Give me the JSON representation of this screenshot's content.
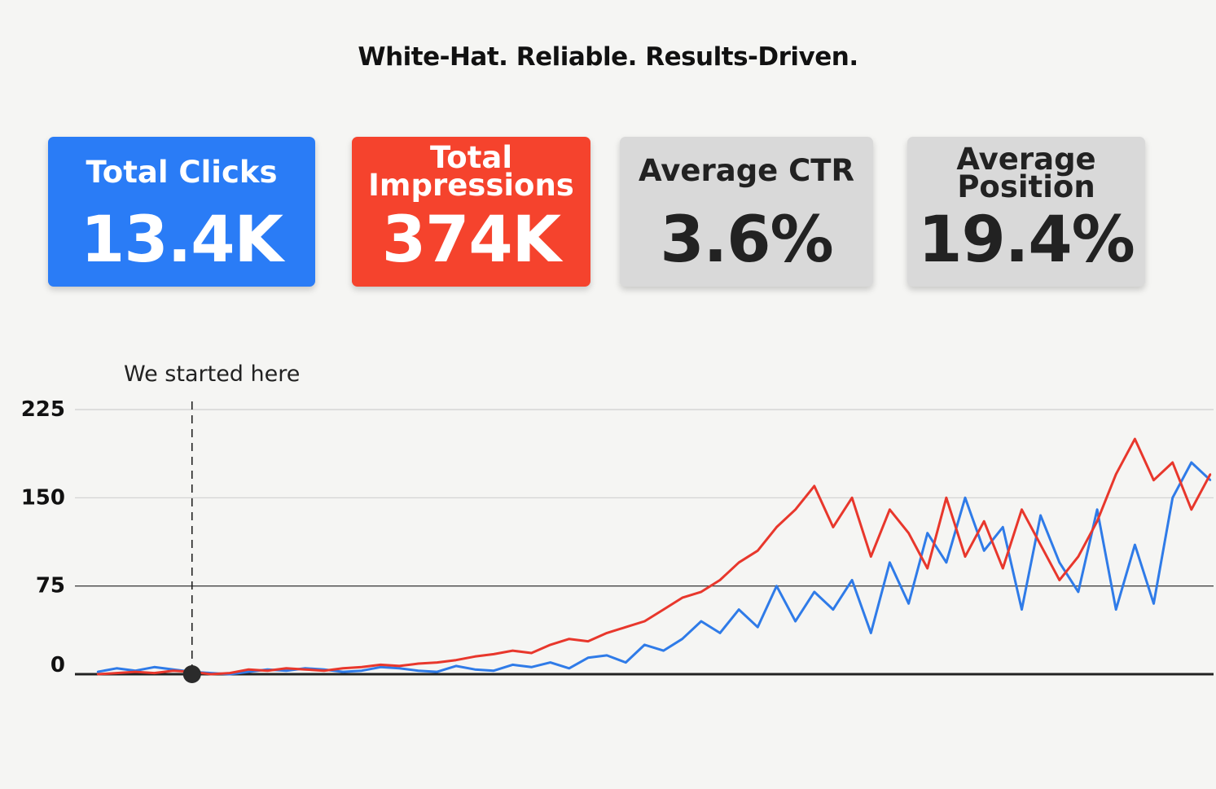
{
  "headline": "White-Hat. Reliable. Results-Driven.",
  "colors": {
    "clicks_card": "#2a7cf6",
    "impressions_card": "#f5432d",
    "neutral_card": "#d9d9d9",
    "blue_series": "#2f7be8",
    "red_series": "#e8372c"
  },
  "metrics": {
    "clicks": {
      "label": "Total Clicks",
      "value": "13.4K"
    },
    "impressions": {
      "label": "Total Impressions",
      "label_line1": "Total",
      "label_line2": "Impressions",
      "value": "374K"
    },
    "ctr": {
      "label": "Average CTR",
      "value": "3.6%"
    },
    "position": {
      "label": "Average Position",
      "label_line1": "Average",
      "label_line2": "Position",
      "value": "19.4%"
    }
  },
  "chart_data": {
    "type": "line",
    "title": "",
    "xlabel": "",
    "ylabel": "",
    "ylim": [
      0,
      225
    ],
    "yticks": [
      0,
      75,
      150,
      225
    ],
    "grid": true,
    "legend": "none",
    "annotation": {
      "text": "We started here",
      "x": 20
    },
    "x": [
      0,
      4,
      8,
      12,
      16,
      20,
      24,
      28,
      32,
      36,
      40,
      44,
      48,
      52,
      56,
      60,
      64,
      68,
      72,
      76,
      80,
      84,
      88,
      92,
      96,
      100,
      104,
      108,
      112,
      116,
      120,
      124,
      128,
      132,
      136,
      140,
      144,
      148,
      152,
      156,
      160,
      164,
      168,
      172,
      176,
      180,
      184,
      188,
      192,
      196,
      200,
      204,
      208,
      212,
      216,
      220,
      224,
      228,
      232,
      236
    ],
    "series": [
      {
        "name": "Clicks",
        "color": "#2f7be8",
        "values": [
          2,
          5,
          3,
          6,
          4,
          2,
          1,
          0,
          2,
          4,
          3,
          5,
          4,
          2,
          3,
          6,
          5,
          3,
          2,
          7,
          4,
          3,
          8,
          6,
          10,
          5,
          14,
          16,
          10,
          25,
          20,
          30,
          45,
          35,
          55,
          40,
          75,
          45,
          70,
          55,
          80,
          35,
          95,
          60,
          120,
          95,
          150,
          105,
          125,
          55,
          135,
          95,
          70,
          140,
          55,
          110,
          60,
          150,
          180,
          165
        ]
      },
      {
        "name": "Impressions",
        "color": "#e8372c",
        "values": [
          0,
          1,
          2,
          1,
          3,
          2,
          0,
          1,
          4,
          3,
          5,
          4,
          3,
          5,
          6,
          8,
          7,
          9,
          10,
          12,
          15,
          17,
          20,
          18,
          25,
          30,
          28,
          35,
          40,
          45,
          55,
          65,
          70,
          80,
          95,
          105,
          125,
          140,
          160,
          125,
          150,
          100,
          140,
          120,
          90,
          150,
          100,
          130,
          90,
          140,
          110,
          80,
          100,
          130,
          170,
          200,
          165,
          180,
          140,
          170
        ]
      }
    ]
  }
}
